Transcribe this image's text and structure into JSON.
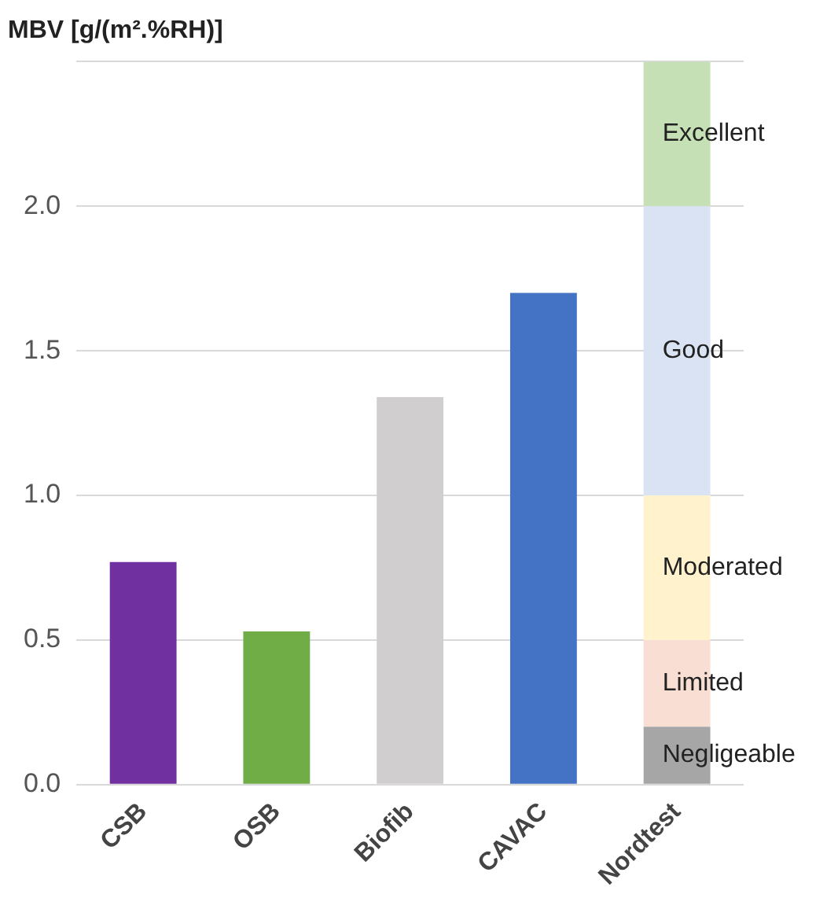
{
  "chart_data": {
    "type": "bar",
    "title": "MBV [g/(m².%RH)]",
    "categories": [
      "CSB",
      "OSB",
      "Biofib",
      "CAVAC",
      "Nordtest"
    ],
    "stacked": true,
    "ylim": [
      0,
      2.5
    ],
    "yticks": [
      {
        "value": 0,
        "label": "0.0"
      },
      0.5,
      {
        "value": 1,
        "label": "1.0"
      },
      1.5,
      {
        "value": 2,
        "label": "2.0"
      },
      {
        "value": 2.5,
        "label": null
      }
    ],
    "grid": "y",
    "legend": false,
    "series": [
      {
        "colors": [
          "#7030a0",
          "#70ad47",
          "#d0cece",
          "#4472c4",
          null
        ],
        "values": [
          0.77,
          0.53,
          1.34,
          1.7,
          null
        ]
      },
      {
        "name": "Negligeable",
        "color": "#a6a6a6",
        "values": [
          null,
          null,
          null,
          null,
          0.2
        ]
      },
      {
        "name": "Limited",
        "color": "#f8ded3",
        "values": [
          null,
          null,
          null,
          null,
          0.3
        ]
      },
      {
        "name": "Moderated",
        "color": "#fff2cc",
        "values": [
          null,
          null,
          null,
          null,
          0.5
        ]
      },
      {
        "name": "Good",
        "color": "#dae3f3",
        "values": [
          null,
          null,
          null,
          null,
          1.0
        ]
      },
      {
        "name": "Excellent",
        "color": "#c5e0b4",
        "values": [
          null,
          null,
          null,
          null,
          0.5
        ]
      }
    ]
  }
}
